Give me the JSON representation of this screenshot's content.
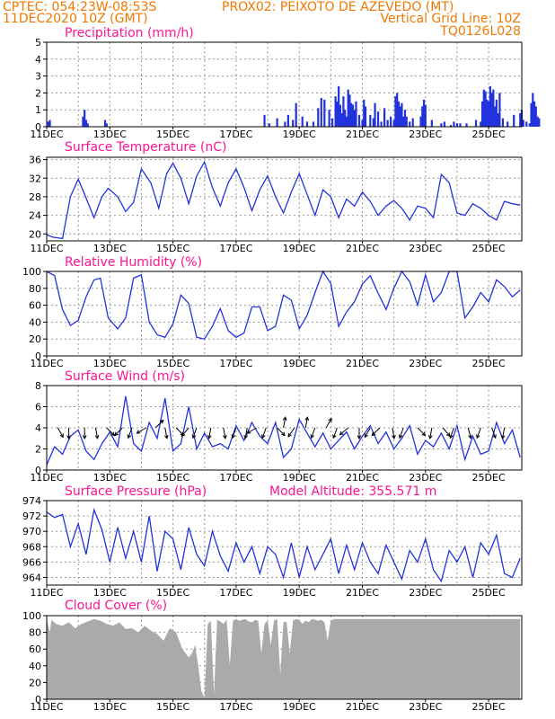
{
  "header": {
    "line1_left": "CPTEC:  054:23W-08:53S",
    "line1_right": "PROX02: PEIXOTO DE AZEVEDO (MT)",
    "line2_left": "11DEC2020 10Z (GMT)",
    "line2_right": "Vertical Grid Line: 10Z",
    "line3_right": "TQ0126L028"
  },
  "colors": {
    "header": "#f07800",
    "title": "#ff1493",
    "series": "#2233dd",
    "cloud": "#aaaaaa"
  },
  "chart_data": [
    {
      "id": "precip",
      "type": "bar",
      "title": "Precipitation (mm/h)",
      "ylim": [
        0,
        5
      ],
      "yticks": [
        "0",
        "1",
        "2",
        "3",
        "4",
        "5"
      ],
      "xticks": [
        "11DEC",
        "13DEC",
        "15DEC",
        "17DEC",
        "19DEC",
        "21DEC",
        "23DEC",
        "25DEC"
      ],
      "xunit": "days since 11DEC 10Z",
      "x": [
        0.05,
        0.1,
        1.15,
        1.2,
        1.25,
        1.3,
        1.85,
        1.9,
        6.9,
        7.05,
        7.3,
        7.55,
        7.65,
        7.8,
        7.9,
        8.1,
        8.25,
        8.45,
        8.6,
        8.7,
        8.8,
        8.95,
        9.05,
        9.15,
        9.2,
        9.25,
        9.3,
        9.35,
        9.4,
        9.45,
        9.5,
        9.55,
        9.6,
        9.65,
        9.7,
        9.75,
        9.8,
        9.9,
        10.0,
        10.05,
        10.1,
        10.25,
        10.35,
        10.4,
        10.5,
        10.6,
        10.7,
        10.8,
        10.9,
        11.0,
        11.05,
        11.1,
        11.15,
        11.2,
        11.25,
        11.3,
        11.35,
        11.4,
        11.5,
        11.6,
        11.85,
        11.9,
        11.95,
        12.0,
        12.2,
        12.5,
        12.6,
        12.8,
        12.9,
        13.0,
        13.1,
        13.3,
        13.6,
        13.75,
        13.8,
        13.85,
        13.9,
        13.95,
        14.0,
        14.05,
        14.1,
        14.15,
        14.2,
        14.25,
        14.3,
        14.35,
        14.45,
        14.6,
        14.8,
        15.0,
        15.05,
        15.1,
        15.2,
        15.3,
        15.35,
        15.4,
        15.45,
        15.5,
        15.55,
        15.6
      ],
      "values": [
        0.3,
        0.4,
        0.6,
        1.0,
        0.4,
        0.2,
        0.4,
        0.2,
        0.7,
        0.2,
        0.5,
        0.3,
        0.7,
        0.4,
        1.4,
        0.6,
        0.3,
        0.3,
        1.1,
        1.7,
        1.6,
        1.0,
        0.5,
        1.8,
        1.5,
        2.4,
        1.3,
        0.8,
        1.8,
        1.0,
        0.6,
        2.2,
        1.9,
        1.4,
        1.3,
        1.0,
        1.5,
        0.7,
        0.4,
        1.6,
        1.2,
        0.7,
        0.5,
        1.4,
        0.9,
        0.3,
        1.1,
        0.4,
        0.6,
        0.4,
        1.8,
        2.0,
        1.5,
        1.2,
        1.4,
        0.6,
        1.0,
        0.6,
        0.3,
        0.5,
        0.6,
        1.2,
        1.6,
        1.3,
        0.4,
        0.2,
        0.3,
        0.1,
        0.3,
        0.2,
        0.2,
        0.2,
        0.4,
        0.3,
        1.5,
        2.2,
        2.1,
        1.6,
        1.5,
        2.4,
        2.0,
        2.2,
        1.2,
        1.6,
        0.8,
        2.0,
        0.5,
        0.3,
        0.7,
        0.8,
        1.0,
        0.4,
        0.3,
        0.2,
        1.4,
        2.0,
        1.5,
        1.2,
        0.6,
        0.5
      ]
    },
    {
      "id": "temp",
      "type": "line",
      "title": "Surface Temperature (nC)",
      "ylim": [
        18.5,
        36.5
      ],
      "yticks": [
        "20",
        "24",
        "28",
        "32",
        "36"
      ],
      "ytick_values": [
        20,
        24,
        28,
        32,
        36
      ],
      "xticks": [
        "11DEC",
        "13DEC",
        "15DEC",
        "17DEC",
        "19DEC",
        "21DEC",
        "23DEC",
        "25DEC"
      ],
      "x": [
        0,
        0.2,
        0.5,
        0.75,
        1.0,
        1.2,
        1.5,
        1.75,
        1.95,
        2.25,
        2.5,
        2.75,
        3.0,
        3.3,
        3.55,
        3.8,
        4.0,
        4.25,
        4.5,
        4.75,
        5.0,
        5.25,
        5.5,
        5.75,
        6.0,
        6.25,
        6.5,
        6.75,
        7.0,
        7.25,
        7.5,
        7.75,
        8.0,
        8.25,
        8.5,
        8.75,
        9.0,
        9.25,
        9.5,
        9.75,
        10.0,
        10.25,
        10.5,
        10.75,
        11.0,
        11.25,
        11.5,
        11.75,
        12.0,
        12.25,
        12.5,
        12.75,
        13.0,
        13.25,
        13.5,
        13.75,
        14.0,
        14.25,
        14.5,
        14.75,
        15.0
      ],
      "values": [
        19.8,
        19.3,
        19.0,
        28.0,
        31.8,
        28.5,
        23.5,
        28.0,
        29.8,
        28.0,
        24.8,
        26.8,
        34.0,
        31.0,
        25.5,
        33.0,
        35.2,
        32.0,
        26.5,
        32.5,
        35.5,
        30.0,
        26.0,
        31.0,
        34.0,
        30.0,
        25.0,
        29.5,
        32.5,
        28.0,
        24.5,
        29.0,
        33.0,
        28.5,
        24.0,
        29.5,
        28.0,
        23.5,
        27.5,
        26.0,
        29.0,
        27.0,
        24.0,
        26.0,
        27.2,
        25.5,
        23.0,
        26.0,
        25.5,
        23.5,
        32.8,
        31.0,
        24.5,
        24.0,
        26.5,
        25.5,
        24.0,
        23.0,
        27.0,
        26.5,
        26.2
      ]
    },
    {
      "id": "rh",
      "type": "line",
      "title": "Relative Humidity (%)",
      "ylim": [
        0,
        100
      ],
      "yticks": [
        "0",
        "20",
        "40",
        "60",
        "80",
        "100"
      ],
      "xticks": [
        "11DEC",
        "13DEC",
        "15DEC",
        "17DEC",
        "19DEC",
        "21DEC",
        "23DEC",
        "25DEC"
      ],
      "x": [
        0,
        0.25,
        0.5,
        0.75,
        1.0,
        1.25,
        1.5,
        1.7,
        1.95,
        2.25,
        2.5,
        2.75,
        3.0,
        3.25,
        3.5,
        3.75,
        4.0,
        4.25,
        4.5,
        4.75,
        5.0,
        5.25,
        5.5,
        5.75,
        6.0,
        6.25,
        6.5,
        6.75,
        7.0,
        7.25,
        7.5,
        7.75,
        8.0,
        8.25,
        8.5,
        8.75,
        9.0,
        9.25,
        9.5,
        9.75,
        10.0,
        10.25,
        10.5,
        10.75,
        11.0,
        11.25,
        11.5,
        11.75,
        12.0,
        12.25,
        12.5,
        12.75,
        13.0,
        13.25,
        13.5,
        13.75,
        14.0,
        14.25,
        14.5,
        14.75,
        15.0
      ],
      "values": [
        100,
        95,
        55,
        36,
        42,
        70,
        90,
        92,
        45,
        32,
        45,
        92,
        96,
        40,
        25,
        22,
        38,
        72,
        62,
        22,
        20,
        35,
        56,
        30,
        22,
        27,
        58,
        58,
        30,
        35,
        72,
        66,
        32,
        48,
        75,
        100,
        86,
        35,
        52,
        64,
        85,
        95,
        74,
        55,
        80,
        100,
        88,
        60,
        96,
        64,
        75,
        100,
        100,
        45,
        58,
        75,
        64,
        90,
        82,
        70,
        78
      ]
    },
    {
      "id": "wind",
      "type": "line",
      "title": "Surface Wind (m/s)",
      "ylim": [
        0,
        8
      ],
      "yticks": [
        "0",
        "2",
        "4",
        "6",
        "8"
      ],
      "xticks": [
        "11DEC",
        "13DEC",
        "15DEC",
        "17DEC",
        "19DEC",
        "21DEC",
        "23DEC",
        "25DEC"
      ],
      "x": [
        0,
        0.25,
        0.5,
        0.75,
        1.0,
        1.25,
        1.5,
        1.75,
        2.0,
        2.25,
        2.5,
        2.75,
        3.0,
        3.25,
        3.5,
        3.75,
        4.0,
        4.25,
        4.5,
        4.75,
        5.0,
        5.25,
        5.5,
        5.75,
        6.0,
        6.25,
        6.5,
        6.75,
        7.0,
        7.25,
        7.5,
        7.75,
        8.0,
        8.25,
        8.5,
        8.75,
        9.0,
        9.25,
        9.5,
        9.75,
        10.0,
        10.25,
        10.5,
        10.75,
        11.0,
        11.25,
        11.5,
        11.75,
        12.0,
        12.25,
        12.5,
        12.75,
        13.0,
        13.25,
        13.5,
        13.75,
        14.0,
        14.25,
        14.5,
        14.75,
        15.0
      ],
      "values": [
        0.5,
        2.2,
        1.5,
        3.2,
        3.8,
        1.8,
        1.0,
        2.5,
        3.6,
        2.2,
        7.0,
        2.5,
        1.8,
        4.5,
        3.0,
        6.8,
        1.8,
        2.5,
        6.0,
        2.0,
        3.5,
        2.2,
        2.5,
        2.0,
        4.2,
        2.8,
        4.5,
        3.2,
        2.5,
        4.5,
        1.2,
        2.0,
        4.8,
        3.5,
        2.2,
        3.5,
        2.0,
        2.8,
        3.6,
        2.0,
        3.2,
        4.2,
        2.5,
        3.6,
        2.0,
        3.0,
        4.2,
        1.5,
        2.8,
        2.2,
        3.5,
        2.0,
        4.2,
        1.0,
        3.2,
        1.5,
        1.8,
        4.5,
        2.5,
        3.8,
        1.2
      ]
    },
    {
      "id": "pressure",
      "type": "line",
      "title": "Surface Pressure (hPa)",
      "annotation": "Model Altitude: 355.571  m",
      "ylim": [
        963,
        974
      ],
      "yticks": [
        "964",
        "966",
        "968",
        "970",
        "972",
        "974"
      ],
      "ytick_values": [
        964,
        966,
        968,
        970,
        972,
        974
      ],
      "xticks": [
        "11DEC",
        "13DEC",
        "15DEC",
        "17DEC",
        "19DEC",
        "21DEC",
        "23DEC",
        "25DEC"
      ],
      "x": [
        0,
        0.25,
        0.5,
        0.75,
        1.0,
        1.25,
        1.5,
        1.75,
        2.0,
        2.25,
        2.5,
        2.75,
        3.0,
        3.25,
        3.5,
        3.75,
        4.0,
        4.25,
        4.5,
        4.75,
        5.0,
        5.25,
        5.5,
        5.75,
        6.0,
        6.25,
        6.5,
        6.75,
        7.0,
        7.25,
        7.5,
        7.75,
        8.0,
        8.25,
        8.5,
        8.75,
        9.0,
        9.25,
        9.5,
        9.75,
        10.0,
        10.25,
        10.5,
        10.75,
        11.0,
        11.25,
        11.5,
        11.75,
        12.0,
        12.25,
        12.5,
        12.75,
        13.0,
        13.25,
        13.5,
        13.75,
        14.0,
        14.25,
        14.5,
        14.75,
        15.0
      ],
      "values": [
        972.5,
        971.8,
        972.2,
        968.0,
        971.0,
        967.0,
        972.8,
        970.2,
        966.0,
        970.5,
        966.5,
        970.0,
        966.0,
        972.0,
        964.8,
        970.0,
        969.0,
        965.0,
        970.5,
        967.0,
        965.5,
        970.0,
        966.8,
        964.8,
        968.5,
        966.0,
        968.0,
        964.5,
        968.0,
        967.0,
        964.0,
        968.5,
        964.0,
        968.0,
        965.0,
        967.0,
        969.0,
        964.5,
        968.2,
        965.0,
        968.5,
        966.0,
        964.5,
        968.2,
        966.0,
        963.8,
        967.5,
        966.0,
        969.0,
        965.0,
        963.5,
        967.5,
        966.0,
        968.0,
        964.0,
        968.5,
        967.0,
        969.5,
        964.5,
        964.0,
        966.5
      ]
    },
    {
      "id": "cloud",
      "type": "area",
      "title": "Cloud Cover (%)",
      "ylim": [
        0,
        100
      ],
      "yticks": [
        "0",
        "20",
        "40",
        "60",
        "80",
        "100"
      ],
      "xticks": [
        "11DEC",
        "13DEC",
        "15DEC",
        "17DEC",
        "19DEC",
        "21DEC",
        "23DEC",
        "25DEC"
      ],
      "x": [
        0,
        0.1,
        0.15,
        0.3,
        0.5,
        0.7,
        0.9,
        1.1,
        1.3,
        1.5,
        1.7,
        1.9,
        2.1,
        2.3,
        2.5,
        2.7,
        2.9,
        3.1,
        3.3,
        3.5,
        3.7,
        3.9,
        4.1,
        4.3,
        4.5,
        4.6,
        4.7,
        4.8,
        4.9,
        5.0,
        5.1,
        5.2,
        5.3,
        5.4,
        5.5,
        5.6,
        5.7,
        5.8,
        5.9,
        6.0,
        6.1,
        6.2,
        6.3,
        6.4,
        6.5,
        6.6,
        6.7,
        6.8,
        6.9,
        7.0,
        7.1,
        7.2,
        7.3,
        7.4,
        7.5,
        7.6,
        7.7,
        7.8,
        7.9,
        8.0,
        8.1,
        8.2,
        8.3,
        8.4,
        8.5,
        8.6,
        8.7,
        8.8,
        8.9,
        9.0,
        9.1,
        9.2,
        9.4,
        9.6,
        9.8,
        10.0,
        10.2,
        10.4,
        10.6,
        10.8,
        11.0,
        11.2,
        11.4,
        11.6,
        11.8,
        12.0,
        12.2,
        12.4,
        12.6,
        12.8,
        13.0,
        13.2,
        13.4,
        13.6,
        13.8,
        14.0,
        14.2,
        14.4,
        14.6,
        14.8,
        15.0
      ],
      "values": [
        96,
        80,
        95,
        90,
        88,
        92,
        85,
        90,
        93,
        96,
        94,
        90,
        88,
        92,
        84,
        85,
        80,
        88,
        82,
        78,
        70,
        85,
        80,
        60,
        50,
        55,
        65,
        40,
        10,
        2,
        90,
        94,
        5,
        95,
        93,
        90,
        95,
        40,
        94,
        96,
        94,
        95,
        96,
        93,
        92,
        95,
        94,
        55,
        90,
        94,
        65,
        94,
        96,
        30,
        92,
        93,
        55,
        94,
        96,
        95,
        90,
        94,
        92,
        96,
        95,
        94,
        95,
        92,
        70,
        94,
        96,
        96,
        96,
        96,
        96,
        96,
        96,
        96,
        96,
        96,
        96,
        96,
        96,
        96,
        96,
        96,
        96,
        96,
        96,
        96,
        96,
        96,
        96,
        96,
        96,
        96,
        96,
        96,
        96,
        96,
        96
      ]
    }
  ],
  "wind_arrows": [
    {
      "t": 0.35,
      "dir": 150
    },
    {
      "t": 0.7,
      "dir": 180
    },
    {
      "t": 1.2,
      "dir": 180
    },
    {
      "t": 1.55,
      "dir": 170
    },
    {
      "t": 1.9,
      "dir": 135
    },
    {
      "t": 2.4,
      "dir": 225
    },
    {
      "t": 2.7,
      "dir": 200
    },
    {
      "t": 3.15,
      "dir": 240
    },
    {
      "t": 3.45,
      "dir": 45
    },
    {
      "t": 3.75,
      "dir": 170
    },
    {
      "t": 4.1,
      "dir": 135
    },
    {
      "t": 4.5,
      "dir": 220
    },
    {
      "t": 4.75,
      "dir": 200
    },
    {
      "t": 5.2,
      "dir": 190
    },
    {
      "t": 5.6,
      "dir": 170
    },
    {
      "t": 6.0,
      "dir": 200
    },
    {
      "t": 6.35,
      "dir": 190
    },
    {
      "t": 6.65,
      "dir": 240
    },
    {
      "t": 6.95,
      "dir": 200
    },
    {
      "t": 7.3,
      "dir": 135
    },
    {
      "t": 7.5,
      "dir": 10
    },
    {
      "t": 7.85,
      "dir": 215
    },
    {
      "t": 8.2,
      "dir": 10
    },
    {
      "t": 8.5,
      "dir": 200
    },
    {
      "t": 8.85,
      "dir": 30
    },
    {
      "t": 9.2,
      "dir": 200
    },
    {
      "t": 9.55,
      "dir": 230
    },
    {
      "t": 9.9,
      "dir": 180
    },
    {
      "t": 10.25,
      "dir": 210
    },
    {
      "t": 10.55,
      "dir": 225
    },
    {
      "t": 10.95,
      "dir": 170
    },
    {
      "t": 11.3,
      "dir": 200
    },
    {
      "t": 11.75,
      "dir": 135
    },
    {
      "t": 12.2,
      "dir": 190
    },
    {
      "t": 12.55,
      "dir": 140
    },
    {
      "t": 12.9,
      "dir": 200
    },
    {
      "t": 13.35,
      "dir": 165
    },
    {
      "t": 13.75,
      "dir": 200
    },
    {
      "t": 14.1,
      "dir": 160
    },
    {
      "t": 14.5,
      "dir": 190
    }
  ]
}
